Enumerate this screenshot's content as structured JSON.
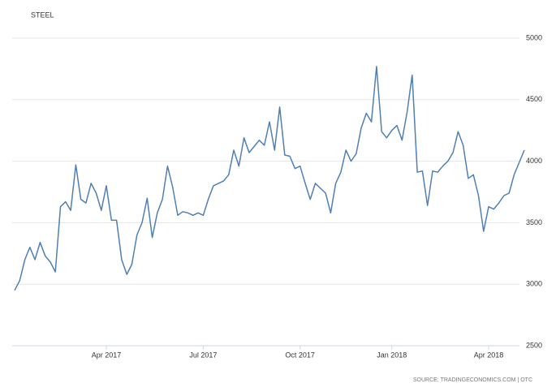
{
  "chart_data": {
    "type": "line",
    "title": "STEEL",
    "source": "SOURCE: TRADINGECONOMICS.COM | OTC",
    "categories": [
      null,
      null,
      null,
      null,
      null,
      null,
      null,
      null,
      null,
      null,
      null,
      null,
      null,
      null,
      null,
      null,
      null,
      null,
      "Apr 2017",
      null,
      null,
      null,
      null,
      null,
      null,
      null,
      null,
      null,
      null,
      null,
      null,
      null,
      null,
      null,
      null,
      null,
      null,
      "Jul 2017",
      null,
      null,
      null,
      null,
      null,
      null,
      null,
      null,
      null,
      null,
      null,
      null,
      null,
      null,
      null,
      null,
      null,
      null,
      "Oct 2017",
      null,
      null,
      null,
      null,
      null,
      null,
      null,
      null,
      null,
      null,
      null,
      null,
      null,
      null,
      null,
      null,
      null,
      "Jan 2018",
      null,
      null,
      null,
      null,
      null,
      null,
      null,
      null,
      null,
      null,
      null,
      null,
      null,
      null,
      null,
      null,
      null,
      null,
      "Apr 2018",
      null,
      null,
      null,
      null,
      null,
      null,
      null
    ],
    "series": [
      {
        "name": "STEEL",
        "color": "#4f7fb3",
        "values": [
          2950,
          3030,
          3200,
          3300,
          3200,
          3340,
          3230,
          3180,
          3100,
          3630,
          3670,
          3600,
          3970,
          3690,
          3660,
          3820,
          3740,
          3600,
          3800,
          3520,
          3520,
          3200,
          3080,
          3160,
          3400,
          3500,
          3700,
          3380,
          3580,
          3690,
          3960,
          3790,
          3560,
          3590,
          3580,
          3560,
          3580,
          3560,
          3690,
          3800,
          3820,
          3840,
          3890,
          4090,
          3960,
          4190,
          4070,
          4120,
          4170,
          4130,
          4320,
          4090,
          4440,
          4050,
          4040,
          3940,
          3960,
          3820,
          3690,
          3820,
          3780,
          3740,
          3580,
          3820,
          3910,
          4090,
          4000,
          4060,
          4270,
          4390,
          4320,
          4770,
          4240,
          4190,
          4250,
          4290,
          4170,
          4400,
          4700,
          3910,
          3920,
          3640,
          3920,
          3910,
          3960,
          4000,
          4070,
          4240,
          4130,
          3860,
          3890,
          3720,
          3430,
          3630,
          3610,
          3660,
          3720,
          3740,
          3890,
          3990,
          4090
        ]
      }
    ],
    "ylim": [
      2500,
      5000
    ],
    "yticks": [
      2500,
      3000,
      3500,
      4000,
      4500,
      5000
    ],
    "grid": true
  }
}
